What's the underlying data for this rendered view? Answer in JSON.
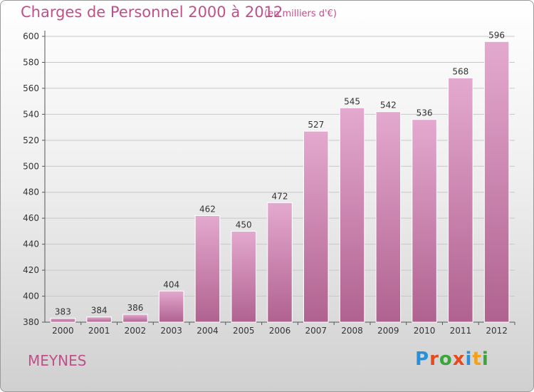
{
  "header": {
    "title": "Charges de Personnel 2000 à 2012",
    "unit": "(en milliers d'€)"
  },
  "footer": {
    "commune": "MEYNES",
    "logo": [
      "P",
      "r",
      "o",
      "x",
      "i",
      "t",
      "i"
    ],
    "logo_colors": [
      "#2a8fd6",
      "#e8491d",
      "#3aa63a",
      "#e8491d",
      "#2a8fd6",
      "#f0a21a",
      "#3aa63a"
    ]
  },
  "colors": {
    "bar_top": "#e4a9cf",
    "bar_bottom": "#b0628f",
    "text_accent": "#c0508a"
  },
  "chart_data": {
    "type": "bar",
    "title": "Charges de Personnel 2000 à 2012",
    "xlabel": "",
    "ylabel": "",
    "categories": [
      "2000",
      "2001",
      "2002",
      "2003",
      "2004",
      "2005",
      "2006",
      "2007",
      "2008",
      "2009",
      "2010",
      "2011",
      "2012"
    ],
    "values": [
      383,
      384,
      386,
      404,
      462,
      450,
      472,
      527,
      545,
      542,
      536,
      568,
      596
    ],
    "ylim": [
      380,
      600
    ],
    "yticks": [
      380,
      400,
      420,
      440,
      460,
      480,
      500,
      520,
      540,
      560,
      580,
      600
    ],
    "grid": true
  }
}
